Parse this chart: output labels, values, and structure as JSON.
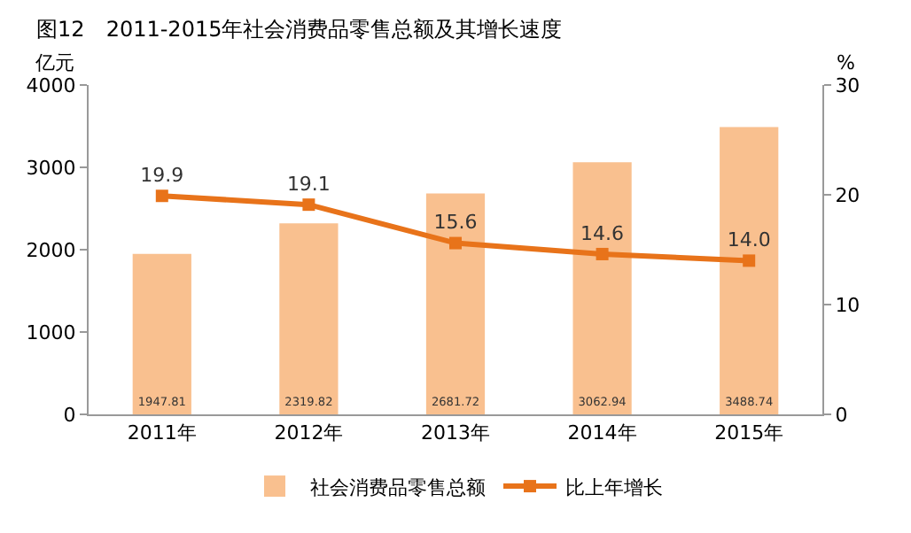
{
  "chart_data": {
    "type": "bar",
    "title": "图12　2011-2015年社会消费品零售总额及其增长速度",
    "ylabel": "亿元",
    "y2label": "%",
    "categories": [
      "2011年",
      "2012年",
      "2013年",
      "2014年",
      "2015年"
    ],
    "series": [
      {
        "name": "社会消费品零售总额",
        "color": "#f9c08f",
        "values": [
          1947.81,
          2319.82,
          2681.72,
          3062.94,
          3488.74
        ]
      },
      {
        "name": "比上年增长",
        "type": "line",
        "axis": "y2",
        "color": "#e8731a",
        "values": [
          19.9,
          19.1,
          15.6,
          14.6,
          14.0
        ],
        "value_labels": [
          "19.9",
          "19.1",
          "15.6",
          "14.6",
          "14.0"
        ]
      }
    ],
    "ylim": [
      0,
      4000
    ],
    "yticks": [
      0,
      1000,
      2000,
      3000,
      4000
    ],
    "y2lim": [
      0,
      30
    ],
    "y2ticks": [
      0,
      10,
      20,
      30
    ],
    "data_labels": true,
    "grid": false,
    "legend": "bottom",
    "marker": "square",
    "line_style": "solid"
  }
}
